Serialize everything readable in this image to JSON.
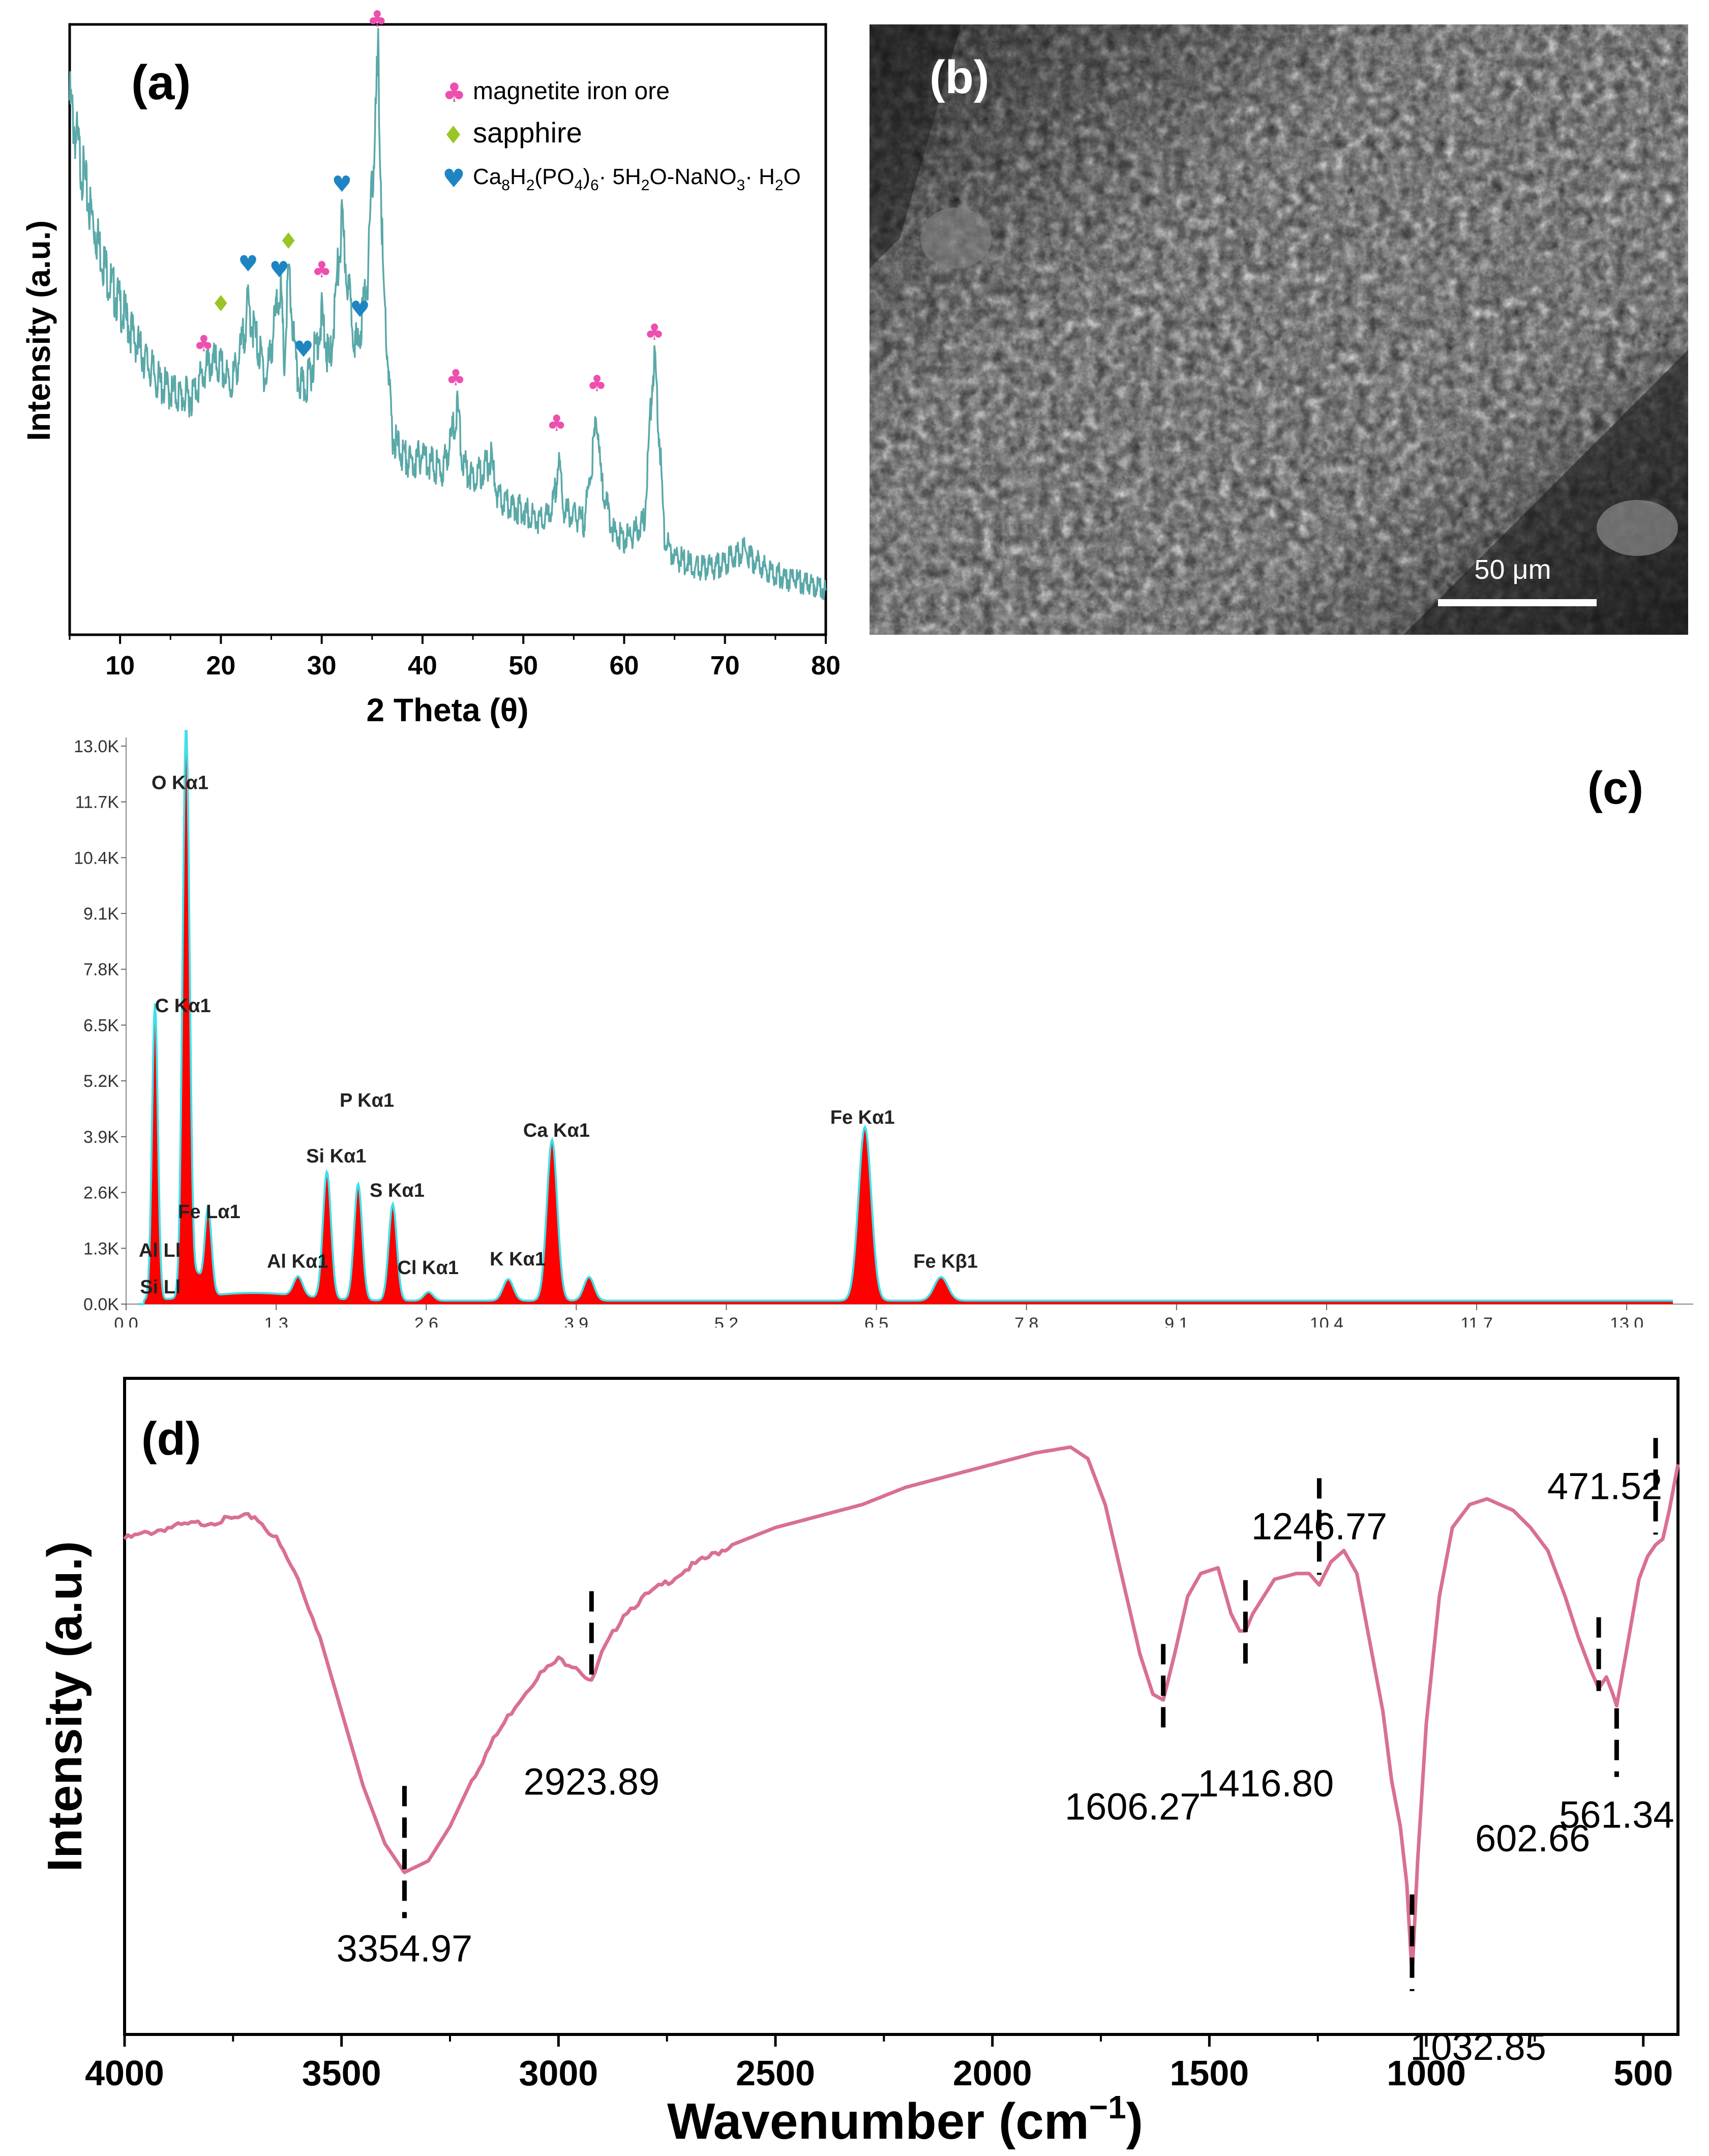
{
  "chart_data": [
    {
      "panel": "(a)",
      "type": "line",
      "xlabel": "2 Theta (θ)",
      "ylabel": "Intensity (a.u.)",
      "xlim": [
        5,
        80
      ],
      "xticks": [
        "10",
        "20",
        "30",
        "40",
        "50",
        "60",
        "70",
        "80"
      ],
      "tick_values": [
        10,
        20,
        30,
        40,
        50,
        60,
        70,
        80
      ],
      "line_color": "#5aa8a8",
      "x": [
        5,
        6,
        7,
        8,
        9,
        10,
        11,
        12,
        13,
        14,
        15,
        16,
        17,
        18,
        19,
        20,
        21,
        22,
        22.7,
        23.5,
        24.5,
        25.5,
        25.9,
        26.3,
        26.7,
        27.5,
        28.2,
        29,
        30,
        30.8,
        31.5,
        32,
        32.7,
        33.5,
        34,
        34.6,
        35.2,
        35.6,
        36.1,
        37,
        38,
        39,
        40,
        41,
        42,
        43,
        43.5,
        44,
        45,
        46,
        46.8,
        47.5,
        48.5,
        50,
        51,
        52,
        53,
        53.5,
        54,
        55,
        56,
        56.8,
        57.3,
        57.8,
        59,
        60,
        61,
        62,
        62.7,
        63,
        63.4,
        64,
        65,
        66,
        67,
        68,
        69,
        70,
        71,
        72,
        73,
        74,
        75,
        76,
        77,
        78,
        79,
        80
      ],
      "y": [
        0.92,
        0.82,
        0.73,
        0.66,
        0.6,
        0.56,
        0.52,
        0.48,
        0.45,
        0.42,
        0.41,
        0.4,
        0.4,
        0.43,
        0.46,
        0.45,
        0.42,
        0.48,
        0.56,
        0.5,
        0.43,
        0.55,
        0.6,
        0.45,
        0.62,
        0.44,
        0.41,
        0.45,
        0.54,
        0.45,
        0.6,
        0.7,
        0.58,
        0.48,
        0.54,
        0.62,
        0.84,
        0.99,
        0.6,
        0.33,
        0.3,
        0.28,
        0.3,
        0.28,
        0.27,
        0.34,
        0.38,
        0.28,
        0.26,
        0.27,
        0.29,
        0.22,
        0.21,
        0.2,
        0.19,
        0.18,
        0.21,
        0.29,
        0.2,
        0.19,
        0.18,
        0.28,
        0.37,
        0.24,
        0.16,
        0.15,
        0.16,
        0.18,
        0.4,
        0.47,
        0.36,
        0.15,
        0.12,
        0.11,
        0.1,
        0.1,
        0.1,
        0.11,
        0.12,
        0.13,
        0.11,
        0.1,
        0.09,
        0.08,
        0.08,
        0.07,
        0.07,
        0.06
      ],
      "annotations": [
        {
          "symbol": "♣",
          "x": 18.3,
          "y": 0.48,
          "color": "#ec4fae"
        },
        {
          "symbol": "♦",
          "x": 20,
          "y": 0.55,
          "color": "#9bc525"
        },
        {
          "symbol": "♥",
          "x": 22.7,
          "y": 0.62,
          "color": "#1e85c2"
        },
        {
          "symbol": "♥",
          "x": 25.8,
          "y": 0.61,
          "color": "#1e85c2"
        },
        {
          "symbol": "♦",
          "x": 26.7,
          "y": 0.66,
          "color": "#9bc525"
        },
        {
          "symbol": "♥",
          "x": 28.2,
          "y": 0.47,
          "color": "#1e85c2"
        },
        {
          "symbol": "♣",
          "x": 30,
          "y": 0.61,
          "color": "#ec4fae"
        },
        {
          "symbol": "♥",
          "x": 32,
          "y": 0.76,
          "color": "#1e85c2"
        },
        {
          "symbol": "♥",
          "x": 33.8,
          "y": 0.54,
          "color": "#1e85c2"
        },
        {
          "symbol": "♣",
          "x": 35.5,
          "y": 1.05,
          "color": "#ec4fae"
        },
        {
          "symbol": "♣",
          "x": 43.3,
          "y": 0.42,
          "color": "#ec4fae"
        },
        {
          "symbol": "♣",
          "x": 53.3,
          "y": 0.34,
          "color": "#ec4fae"
        },
        {
          "symbol": "♣",
          "x": 57.3,
          "y": 0.41,
          "color": "#ec4fae"
        },
        {
          "symbol": "♣",
          "x": 63,
          "y": 0.5,
          "color": "#ec4fae"
        }
      ],
      "legend": [
        {
          "symbol": "♣",
          "label": "magnetite iron ore",
          "color": "#ec4fae"
        },
        {
          "symbol": "♦",
          "label": "sapphire",
          "color": "#9bc525"
        },
        {
          "symbol": "♥",
          "label": "Ca8H2(PO4)6· 5H2O-NaNO3· H2O",
          "color": "#1e85c2"
        }
      ]
    },
    {
      "panel": "(c)",
      "type": "area",
      "xlim": [
        0,
        13.4
      ],
      "ylim": [
        0,
        13.2
      ],
      "xticks": [
        "0.0",
        "1.3",
        "2.6",
        "3.9",
        "5.2",
        "6.5",
        "7.8",
        "9.1",
        "10.4",
        "11.7",
        "13.0"
      ],
      "xtick_values": [
        0,
        1.3,
        2.6,
        3.9,
        5.2,
        6.5,
        7.8,
        9.1,
        10.4,
        11.7,
        13.0
      ],
      "yticks": [
        "0.0K",
        "1.3K",
        "2.6K",
        "3.9K",
        "5.2K",
        "6.5K",
        "7.8K",
        "9.1K",
        "10.4K",
        "11.7K",
        "13.0K"
      ],
      "ytick_values": [
        0,
        1.3,
        2.6,
        3.9,
        5.2,
        6.5,
        7.8,
        9.1,
        10.4,
        11.7,
        13.0
      ],
      "fill_color": "#ff0000",
      "outline_color": "#40e0e8",
      "peaks": [
        {
          "x": 0.25,
          "h": 6.9,
          "w": 0.025
        },
        {
          "x": 0.52,
          "h": 13.4,
          "w": 0.03
        },
        {
          "x": 0.71,
          "h": 2.05,
          "w": 0.03
        },
        {
          "x": 0.62,
          "h": 0.5,
          "w": 0.03
        },
        {
          "x": 1.49,
          "h": 0.45,
          "w": 0.04
        },
        {
          "x": 1.74,
          "h": 2.95,
          "w": 0.035
        },
        {
          "x": 2.01,
          "h": 2.7,
          "w": 0.035
        },
        {
          "x": 2.31,
          "h": 2.25,
          "w": 0.035
        },
        {
          "x": 2.62,
          "h": 0.2,
          "w": 0.04
        },
        {
          "x": 3.31,
          "h": 0.5,
          "w": 0.045
        },
        {
          "x": 3.69,
          "h": 3.75,
          "w": 0.045
        },
        {
          "x": 4.01,
          "h": 0.55,
          "w": 0.045
        },
        {
          "x": 6.4,
          "h": 4.05,
          "w": 0.055
        },
        {
          "x": 7.06,
          "h": 0.55,
          "w": 0.06
        }
      ],
      "labels": [
        {
          "text": "O  Kα1",
          "x": 0.22,
          "y": 12.0
        },
        {
          "text": "C  Kα1",
          "x": 0.25,
          "y": 6.8
        },
        {
          "text": "P  Kα1",
          "x": 1.85,
          "y": 4.6
        },
        {
          "text": "Si Kα1",
          "x": 1.56,
          "y": 3.3
        },
        {
          "text": "S  Kα1",
          "x": 2.11,
          "y": 2.5
        },
        {
          "text": "Ca Kα1",
          "x": 3.44,
          "y": 3.9
        },
        {
          "text": "Fe Kα1",
          "x": 6.1,
          "y": 4.2
        },
        {
          "text": "Fe Lα1",
          "x": 0.45,
          "y": 2.0
        },
        {
          "text": "Al Kα1",
          "x": 1.22,
          "y": 0.85
        },
        {
          "text": "Cl Kα1",
          "x": 2.35,
          "y": 0.7
        },
        {
          "text": "K  Kα1",
          "x": 3.15,
          "y": 0.9
        },
        {
          "text": "Fe Kβ1",
          "x": 6.82,
          "y": 0.85
        },
        {
          "text": "Al Ll",
          "x": 0.11,
          "y": 1.1
        },
        {
          "text": "Si Ll",
          "x": 0.12,
          "y": 0.25
        }
      ]
    },
    {
      "panel": "(d)",
      "type": "line",
      "xlabel": "Wavenumber (cm",
      "xlabel_sup": "−1",
      "xlabel_close": ")",
      "ylabel": "Intensity (a.u.)",
      "xlim": [
        4000,
        420
      ],
      "ylim": [
        0,
        1
      ],
      "xticks": [
        "4000",
        "3500",
        "3000",
        "2500",
        "2000",
        "1500",
        "1000",
        "500"
      ],
      "xtick_values": [
        4000,
        3500,
        3000,
        2500,
        2000,
        1500,
        1000,
        500
      ],
      "line_color": "#d9708f",
      "x": [
        4000,
        3900,
        3800,
        3700,
        3650,
        3600,
        3550,
        3500,
        3450,
        3400,
        3354.97,
        3300,
        3250,
        3200,
        3150,
        3100,
        3050,
        3000,
        2960,
        2923.89,
        2900,
        2850,
        2800,
        2700,
        2600,
        2500,
        2400,
        2300,
        2200,
        2100,
        2000,
        1900,
        1820,
        1780,
        1740,
        1700,
        1660,
        1630,
        1606.27,
        1580,
        1550,
        1520,
        1480,
        1450,
        1430,
        1416.8,
        1400,
        1350,
        1300,
        1270,
        1246.77,
        1220,
        1190,
        1160,
        1130,
        1100,
        1080,
        1060,
        1045,
        1032.85,
        1020,
        1000,
        970,
        940,
        900,
        860,
        830,
        800,
        760,
        720,
        680,
        650,
        620,
        602.66,
        585,
        570,
        561.34,
        540,
        510,
        490,
        471.52,
        455,
        440,
        420
      ],
      "y": [
        0.8,
        0.82,
        0.83,
        0.84,
        0.8,
        0.73,
        0.63,
        0.5,
        0.37,
        0.27,
        0.22,
        0.24,
        0.3,
        0.38,
        0.45,
        0.51,
        0.56,
        0.59,
        0.58,
        0.55,
        0.6,
        0.67,
        0.7,
        0.75,
        0.79,
        0.82,
        0.84,
        0.86,
        0.89,
        0.91,
        0.93,
        0.95,
        0.96,
        0.94,
        0.86,
        0.73,
        0.6,
        0.53,
        0.52,
        0.6,
        0.7,
        0.74,
        0.75,
        0.67,
        0.64,
        0.64,
        0.67,
        0.73,
        0.74,
        0.74,
        0.72,
        0.76,
        0.78,
        0.74,
        0.62,
        0.5,
        0.38,
        0.3,
        0.2,
        0.04,
        0.24,
        0.48,
        0.7,
        0.82,
        0.86,
        0.87,
        0.86,
        0.85,
        0.82,
        0.78,
        0.7,
        0.63,
        0.57,
        0.54,
        0.56,
        0.53,
        0.51,
        0.6,
        0.73,
        0.77,
        0.79,
        0.8,
        0.85,
        0.93
      ],
      "markers": [
        {
          "label": "3354.97",
          "x": 3354.97
        },
        {
          "label": "2923.89",
          "x": 2923.89
        },
        {
          "label": "1606.27",
          "x": 1606.27
        },
        {
          "label": "1416.80",
          "x": 1416.8
        },
        {
          "label": "1246.77",
          "x": 1246.77
        },
        {
          "label": "1032.85",
          "x": 1032.85
        },
        {
          "label": "602.66",
          "x": 602.66
        },
        {
          "label": "561.34",
          "x": 561.34
        },
        {
          "label": "471.52",
          "x": 471.52
        }
      ]
    }
  ],
  "panels": {
    "a_label": "(a)",
    "b_label": "(b)",
    "c_label": "(c)",
    "d_label": "(d)"
  },
  "sem_image": {
    "scale_label": "50 μm"
  },
  "legend_formula": {
    "p1": "Ca",
    "s1": "8",
    "p2": "H",
    "s2": "2",
    "p3": "(PO",
    "s3": "4",
    "p4": ")",
    "s4": "6",
    "p5": "· 5H",
    "s5": "2",
    "p6": "O-NaNO",
    "s6": "3",
    "p7": "· H",
    "s7": "2",
    "p8": "O"
  }
}
